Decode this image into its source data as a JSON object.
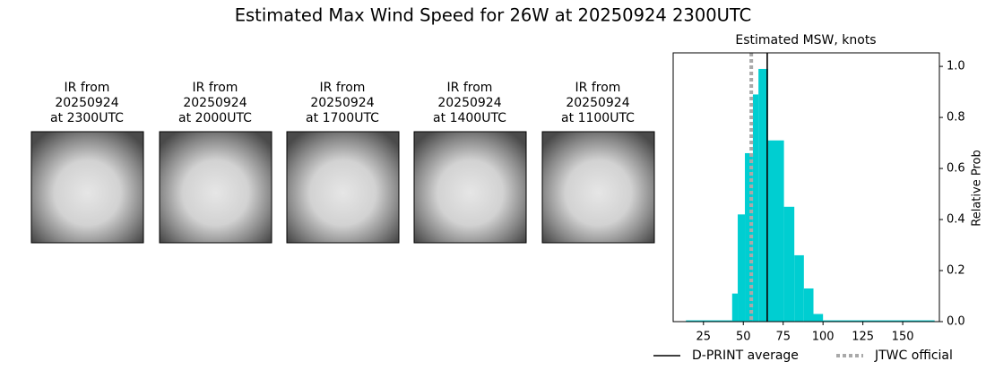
{
  "title": "Estimated Max Wind Speed for 26W at 20250924 2300UTC",
  "images": [
    {
      "title": [
        "IR from",
        "20250924",
        "at 2300UTC"
      ]
    },
    {
      "title": [
        "IR from",
        "20250924",
        "at 2000UTC"
      ]
    },
    {
      "title": [
        "IR from",
        "20250924",
        "at 1700UTC"
      ]
    },
    {
      "title": [
        "IR from",
        "20250924",
        "at 1400UTC"
      ]
    },
    {
      "title": [
        "IR from",
        "20250924",
        "at 1100UTC"
      ]
    }
  ],
  "chart_data": {
    "type": "histogram",
    "title": "Estimated MSW, knots",
    "y_label": "Relative Prob",
    "bins": [
      14,
      43,
      46.5,
      51,
      56,
      59.5,
      65.5,
      75.5,
      82,
      88,
      94,
      100,
      170
    ],
    "values": [
      0.005,
      0.11,
      0.42,
      0.66,
      0.89,
      0.99,
      0.71,
      0.45,
      0.26,
      0.13,
      0.03,
      0.005
    ],
    "color": "#00ced1",
    "xlim": [
      6,
      173
    ],
    "xticks": [
      25,
      50,
      75,
      100,
      125,
      150
    ],
    "ylim": [
      0,
      1.053
    ],
    "yticks": [
      {
        "value": 0,
        "label": "0.0"
      },
      {
        "value": 0.2,
        "label": "0.2"
      },
      {
        "value": 0.4,
        "label": "0.4"
      },
      {
        "value": 0.6,
        "label": "0.6"
      },
      {
        "value": 0.8,
        "label": "0.8"
      },
      {
        "value": 1,
        "label": "1.0"
      }
    ],
    "lines": [
      {
        "name": "D-PRINT average",
        "x": 65,
        "color": "#000000",
        "style": "solid"
      },
      {
        "name": "JTWC official",
        "x": 55,
        "color": "#a9a9a9",
        "style": "dotted"
      }
    ]
  }
}
